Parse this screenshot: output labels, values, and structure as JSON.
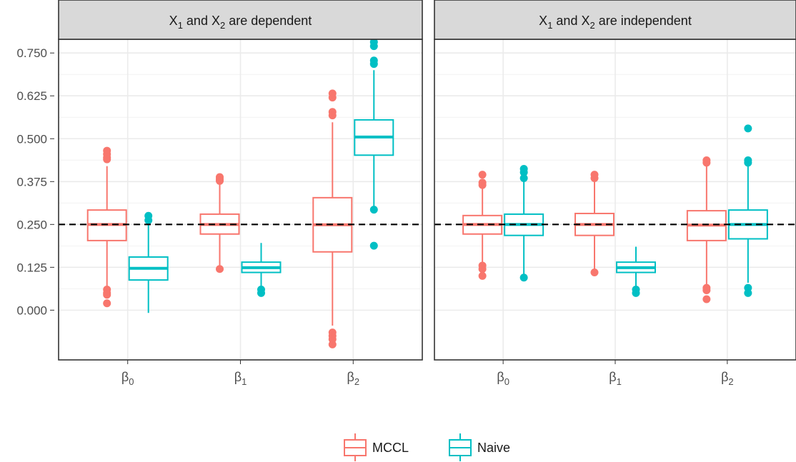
{
  "chart_data": {
    "type": "boxplot",
    "facets": [
      {
        "title_parts": [
          "X",
          "1",
          " and X",
          "2",
          " are dependent"
        ],
        "boxes": [
          {
            "category": "β0",
            "series": "MCCL",
            "whisker_low": 0.07,
            "q1": 0.203,
            "median": 0.25,
            "q3": 0.292,
            "whisker_high": 0.42,
            "outliers": [
              0.465,
              0.455,
              0.445,
              0.44,
              0.06,
              0.05,
              0.045,
              0.02
            ]
          },
          {
            "category": "β0",
            "series": "Naive",
            "whisker_low": -0.008,
            "q1": 0.088,
            "median": 0.122,
            "q3": 0.155,
            "whisker_high": 0.255,
            "outliers": [
              0.275,
              0.262
            ]
          },
          {
            "category": "β1",
            "series": "MCCL",
            "whisker_low": 0.12,
            "q1": 0.222,
            "median": 0.25,
            "q3": 0.28,
            "whisker_high": 0.37,
            "outliers": [
              0.388,
              0.382,
              0.377,
              0.12
            ]
          },
          {
            "category": "β1",
            "series": "Naive",
            "whisker_low": 0.07,
            "q1": 0.11,
            "median": 0.124,
            "q3": 0.14,
            "whisker_high": 0.196,
            "outliers": [
              0.06,
              0.05
            ]
          },
          {
            "category": "β2",
            "series": "MCCL",
            "whisker_low": -0.045,
            "q1": 0.17,
            "median": 0.249,
            "q3": 0.328,
            "whisker_high": 0.548,
            "outliers": [
              0.632,
              0.62,
              0.578,
              0.568,
              -0.065,
              -0.075,
              -0.085,
              -0.1
            ]
          },
          {
            "category": "β2",
            "series": "Naive",
            "whisker_low": 0.3,
            "q1": 0.452,
            "median": 0.505,
            "q3": 0.555,
            "whisker_high": 0.7,
            "outliers": [
              0.782,
              0.77,
              0.728,
              0.718,
              0.293,
              0.188
            ]
          }
        ]
      },
      {
        "title_parts": [
          "X",
          "1",
          " and X",
          "2",
          " are independent"
        ],
        "boxes": [
          {
            "category": "β0",
            "series": "MCCL",
            "whisker_low": 0.14,
            "q1": 0.222,
            "median": 0.25,
            "q3": 0.276,
            "whisker_high": 0.36,
            "outliers": [
              0.395,
              0.372,
              0.365,
              0.13,
              0.12,
              0.1
            ]
          },
          {
            "category": "β0",
            "series": "Naive",
            "whisker_low": 0.1,
            "q1": 0.218,
            "median": 0.25,
            "q3": 0.28,
            "whisker_high": 0.38,
            "outliers": [
              0.412,
              0.402,
              0.385,
              0.095
            ]
          },
          {
            "category": "β1",
            "series": "MCCL",
            "whisker_low": 0.12,
            "q1": 0.218,
            "median": 0.25,
            "q3": 0.282,
            "whisker_high": 0.38,
            "outliers": [
              0.395,
              0.385,
              0.11
            ]
          },
          {
            "category": "β1",
            "series": "Naive",
            "whisker_low": 0.07,
            "q1": 0.11,
            "median": 0.124,
            "q3": 0.14,
            "whisker_high": 0.185,
            "outliers": [
              0.06,
              0.05
            ]
          },
          {
            "category": "β2",
            "series": "MCCL",
            "whisker_low": 0.07,
            "q1": 0.203,
            "median": 0.248,
            "q3": 0.29,
            "whisker_high": 0.425,
            "outliers": [
              0.437,
              0.43,
              0.065,
              0.058,
              0.032
            ]
          },
          {
            "category": "β2",
            "series": "Naive",
            "whisker_low": 0.08,
            "q1": 0.208,
            "median": 0.25,
            "q3": 0.292,
            "whisker_high": 0.425,
            "outliers": [
              0.53,
              0.437,
              0.43,
              0.065,
              0.05
            ]
          }
        ]
      }
    ],
    "categories": [
      {
        "key": "β0",
        "base": "β",
        "sub": "0"
      },
      {
        "key": "β1",
        "base": "β",
        "sub": "1"
      },
      {
        "key": "β2",
        "base": "β",
        "sub": "2"
      }
    ],
    "series": [
      {
        "name": "MCCL",
        "color": "#F8766D"
      },
      {
        "name": "Naive",
        "color": "#00BFC4"
      }
    ],
    "y_ticks": [
      "0.000",
      "0.125",
      "0.250",
      "0.375",
      "0.500",
      "0.625",
      "0.750"
    ],
    "ylim": [
      -0.145,
      0.79
    ],
    "reference_line": 0.25,
    "grid": true,
    "legend_position": "bottom"
  }
}
